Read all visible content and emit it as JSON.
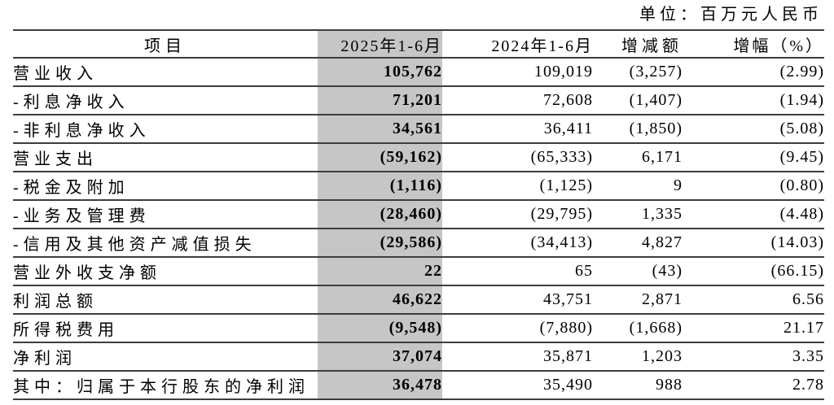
{
  "unit_label": "单位：百万元人民币",
  "colors": {
    "highlight_column_bg": "#c6c6c6",
    "rule_line": "#3d3d3d",
    "text": "#000000",
    "background": "#ffffff"
  },
  "table": {
    "columns": [
      {
        "key": "item",
        "label": "项目"
      },
      {
        "key": "v2025",
        "label": "2025年1-6月"
      },
      {
        "key": "v2024",
        "label": "2024年1-6月"
      },
      {
        "key": "change",
        "label": "增减额"
      },
      {
        "key": "pct",
        "label": "增幅（%）"
      }
    ],
    "rows": [
      {
        "item": "营业收入",
        "v2025": "105,762",
        "v2024": "109,019",
        "change": "(3,257)",
        "pct": "(2.99)"
      },
      {
        "item": "-利息净收入",
        "v2025": "71,201",
        "v2024": "72,608",
        "change": "(1,407)",
        "pct": "(1.94)"
      },
      {
        "item": "-非利息净收入",
        "v2025": "34,561",
        "v2024": "36,411",
        "change": "(1,850)",
        "pct": "(5.08)"
      },
      {
        "item": "营业支出",
        "v2025": "(59,162)",
        "v2024": "(65,333)",
        "change": "6,171",
        "pct": "(9.45)"
      },
      {
        "item": "-税金及附加",
        "v2025": "(1,116)",
        "v2024": "(1,125)",
        "change": "9",
        "pct": "(0.80)"
      },
      {
        "item": "-业务及管理费",
        "v2025": "(28,460)",
        "v2024": "(29,795)",
        "change": "1,335",
        "pct": "(4.48)"
      },
      {
        "item": "-信用及其他资产减值损失",
        "v2025": "(29,586)",
        "v2024": "(34,413)",
        "change": "4,827",
        "pct": "(14.03)"
      },
      {
        "item": "营业外收支净额",
        "v2025": "22",
        "v2024": "65",
        "change": "(43)",
        "pct": "(66.15)"
      },
      {
        "item": "利润总额",
        "v2025": "46,622",
        "v2024": "43,751",
        "change": "2,871",
        "pct": "6.56"
      },
      {
        "item": "所得税费用",
        "v2025": "(9,548)",
        "v2024": "(7,880)",
        "change": "(1,668)",
        "pct": "21.17"
      },
      {
        "item": "净利润",
        "v2025": "37,074",
        "v2024": "35,871",
        "change": "1,203",
        "pct": "3.35"
      },
      {
        "item": "其中：归属于本行股东的净利润",
        "v2025": "36,478",
        "v2024": "35,490",
        "change": "988",
        "pct": "2.78"
      }
    ]
  }
}
